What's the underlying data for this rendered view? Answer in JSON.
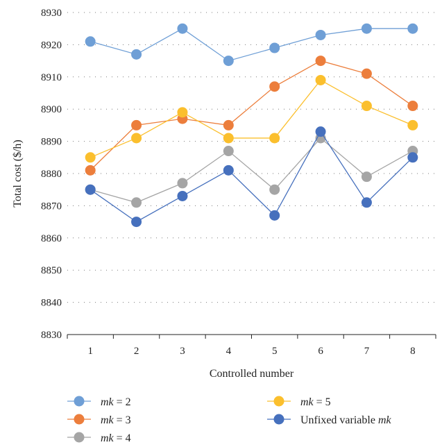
{
  "chart_data": {
    "type": "line",
    "title": "",
    "xlabel": "Controlled number",
    "ylabel": "Total cost ($/h)",
    "categories": [
      "1",
      "2",
      "3",
      "4",
      "5",
      "6",
      "7",
      "8"
    ],
    "ylim": [
      8830,
      8930
    ],
    "yticks": [
      "8830",
      "8840",
      "8850",
      "8860",
      "8870",
      "8880",
      "8890",
      "8900",
      "8910",
      "8920",
      "8930"
    ],
    "grid": "horizontal dotted",
    "legend_position": "bottom",
    "series": [
      {
        "name_var": "mk",
        "name_rest": " = 2",
        "color": "#6f9fd6",
        "values": [
          8921,
          8917,
          8925,
          8915,
          8919,
          8923,
          8925,
          8925
        ]
      },
      {
        "name_var": "mk",
        "name_rest": " = 3",
        "color": "#ec7e3c",
        "values": [
          8881,
          8895,
          8897,
          8895,
          8907,
          8915,
          8911,
          8901
        ]
      },
      {
        "name_var": "mk",
        "name_rest": " = 4",
        "color": "#a5a5a5",
        "values": [
          8875,
          8871,
          8877,
          8887,
          8875,
          8891,
          8879,
          8887
        ]
      },
      {
        "name_var": "mk",
        "name_rest": " = 5",
        "color": "#fbbf2d",
        "values": [
          8885,
          8891,
          8899,
          8891,
          8891,
          8909,
          8901,
          8895
        ]
      },
      {
        "name_prefix": "Unfixed variable ",
        "name_var": "mk",
        "color": "#4670bd",
        "values": [
          8875,
          8865,
          8873,
          8881,
          8867,
          8893,
          8871,
          8885
        ]
      }
    ]
  }
}
